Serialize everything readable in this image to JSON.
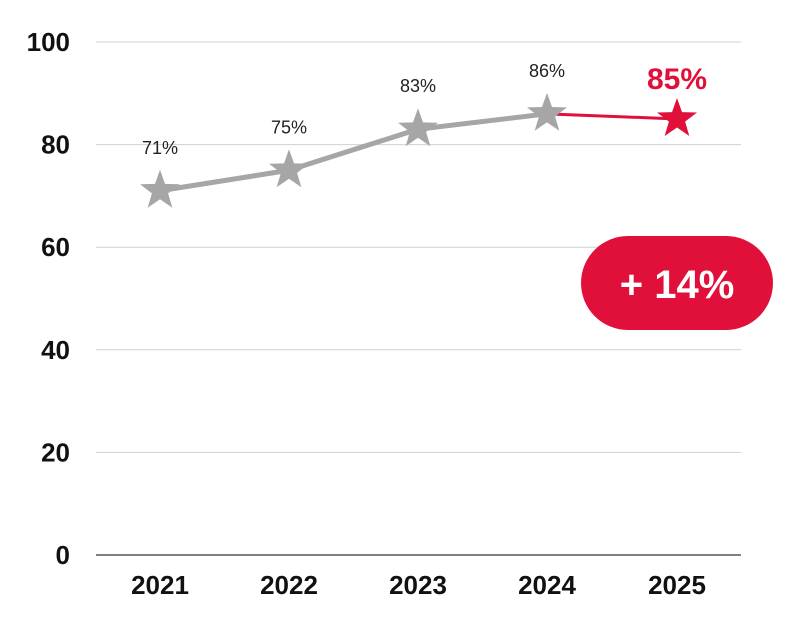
{
  "chart_data": {
    "type": "line",
    "categories": [
      "2021",
      "2022",
      "2023",
      "2024",
      "2025"
    ],
    "values": [
      71,
      75,
      83,
      86,
      85
    ],
    "data_labels": [
      "71%",
      "75%",
      "83%",
      "86%",
      "85%"
    ],
    "highlight_index": 4,
    "ylim": [
      0,
      100
    ],
    "yticks": [
      "0",
      "20",
      "40",
      "60",
      "80",
      "100"
    ],
    "grid": true,
    "marker": "star-icon",
    "colors": {
      "base": "#a6a6a6",
      "highlight": "#e0103a",
      "grid": "#d0d0d0",
      "axis": "#555555"
    },
    "annotation": {
      "text": "+ 14%"
    }
  }
}
